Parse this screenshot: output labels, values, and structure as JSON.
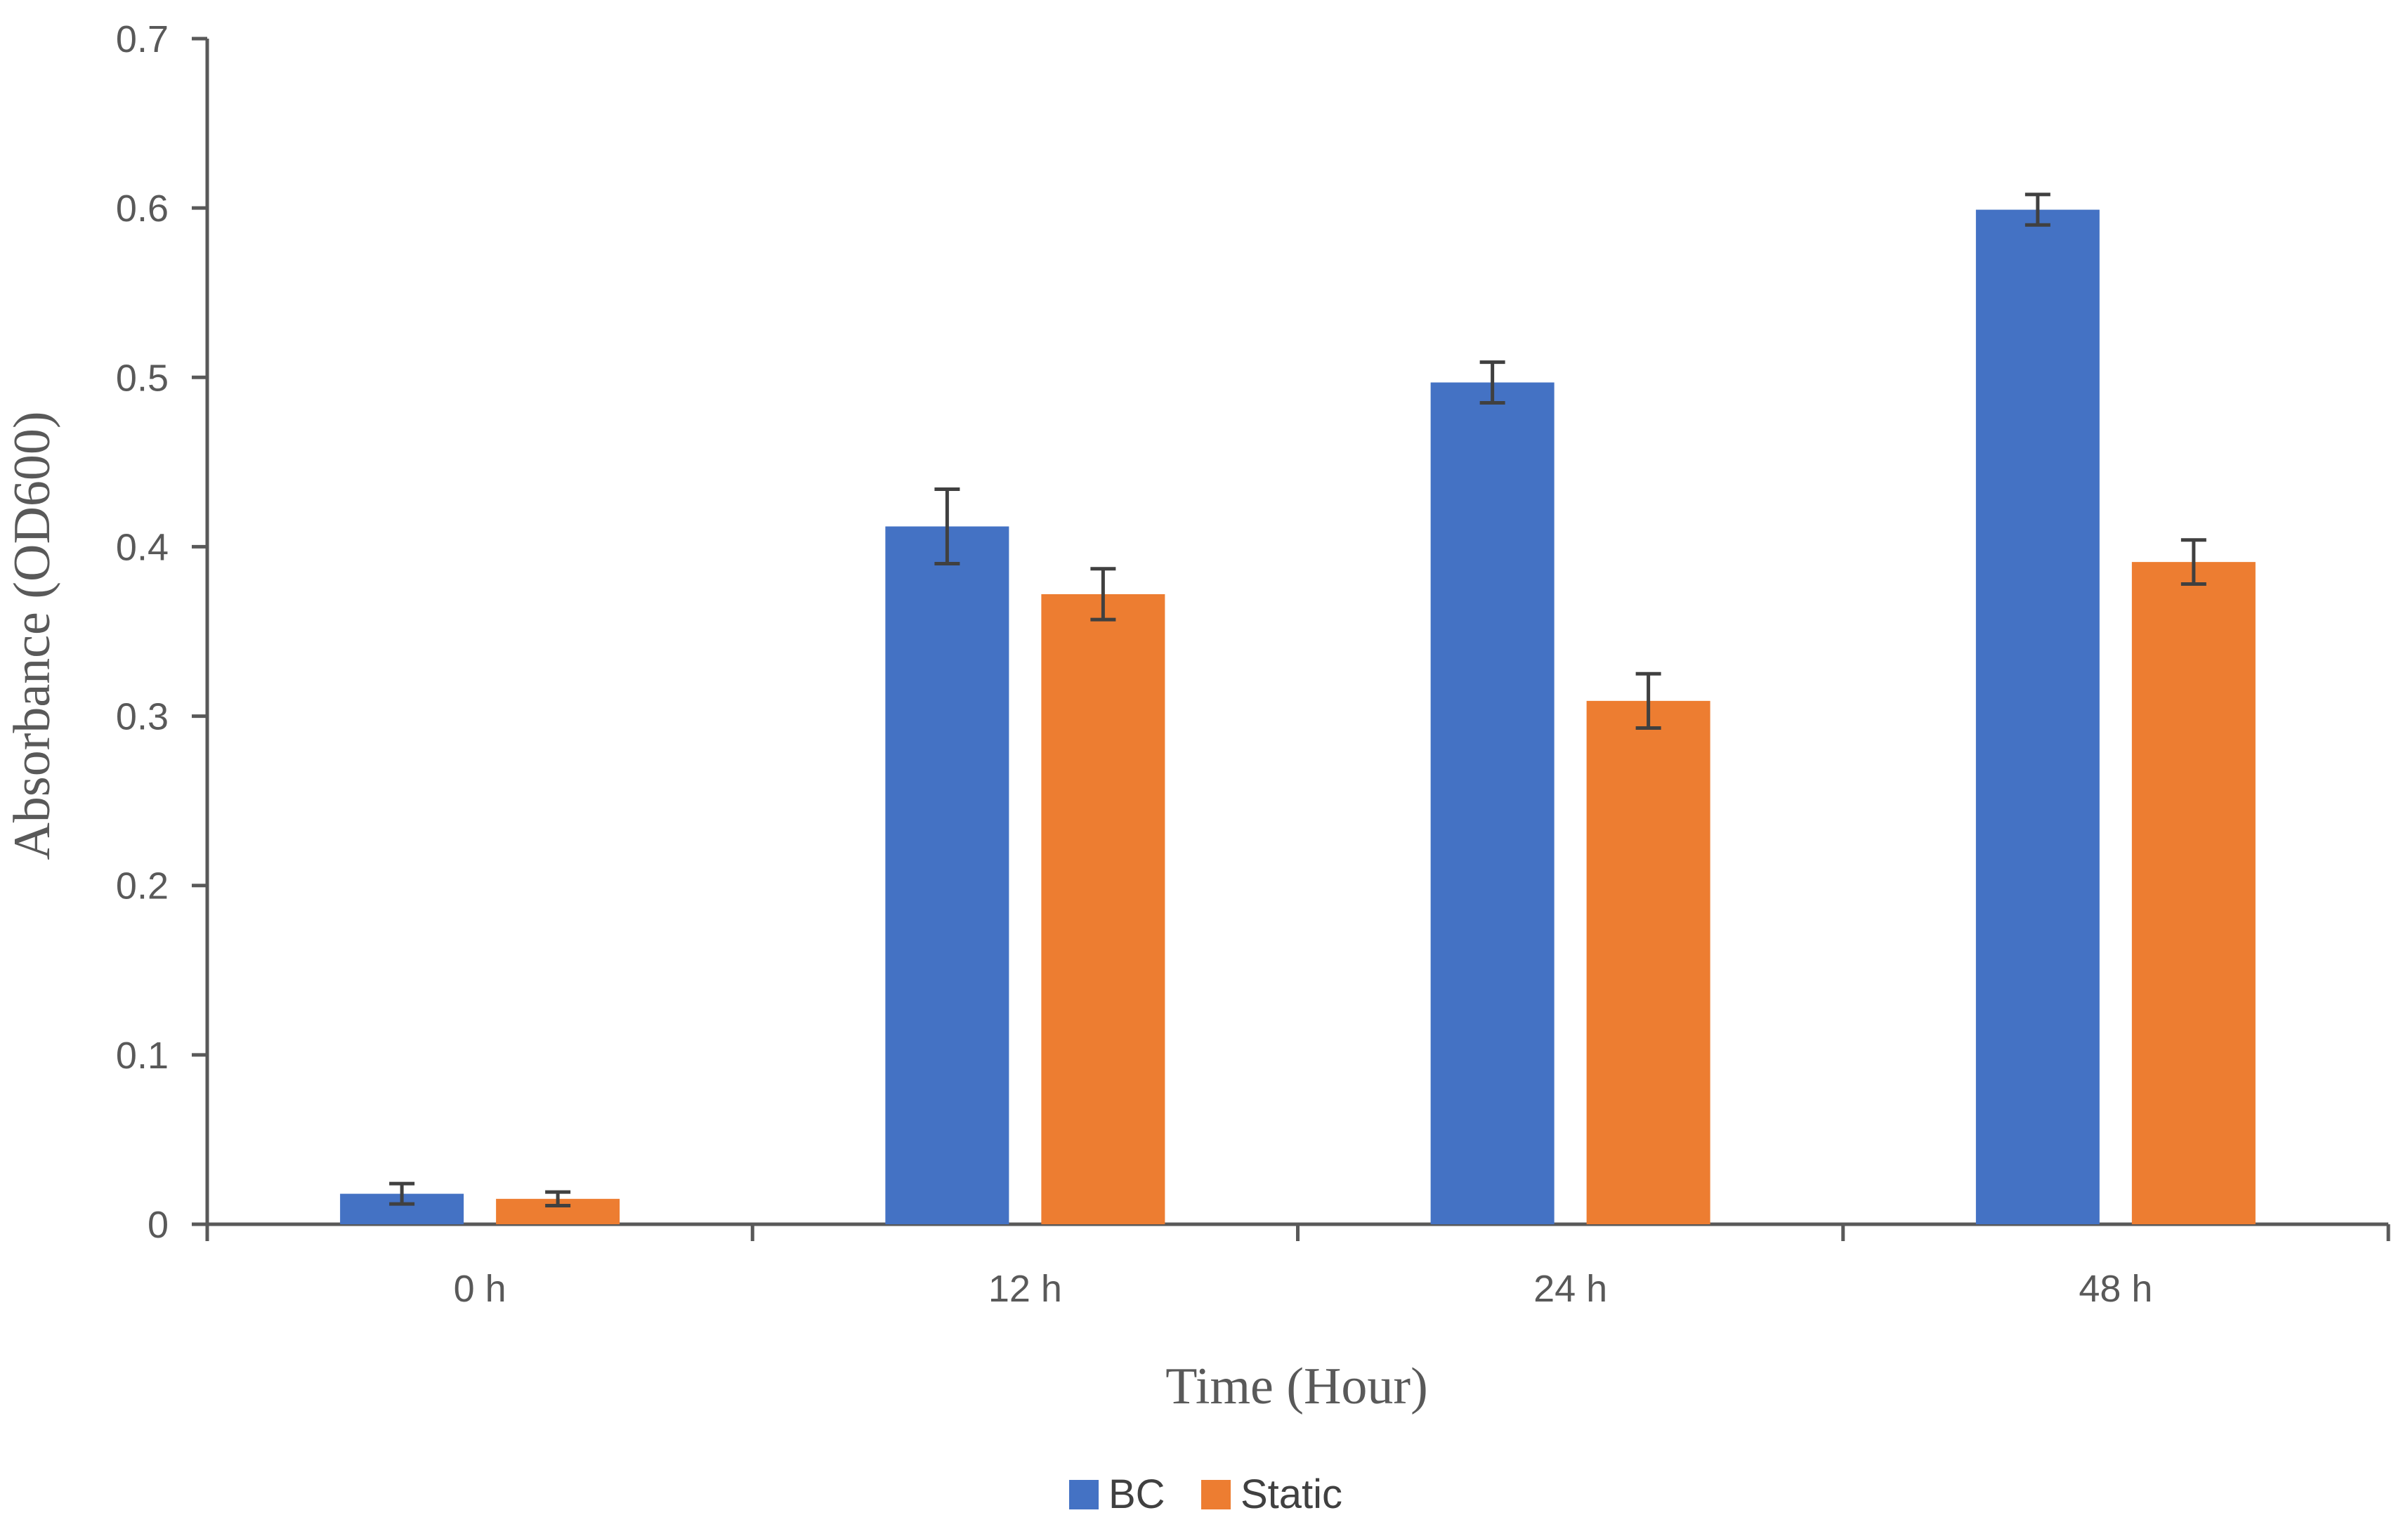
{
  "chart_data": {
    "type": "bar",
    "title": "",
    "xlabel": "Time (Hour)",
    "ylabel": "Absorbance (OD600)",
    "categories": [
      "0 h",
      "12 h",
      "24 h",
      "48 h"
    ],
    "ylim": [
      0,
      0.7
    ],
    "yticks": [
      0,
      0.1,
      0.2,
      0.3,
      0.4,
      0.5,
      0.6,
      0.7
    ],
    "ytick_labels": [
      "0",
      "0.1",
      "0.2",
      "0.3",
      "0.4",
      "0.5",
      "0.6",
      "0.7"
    ],
    "grid": false,
    "legend_position": "bottom",
    "series": [
      {
        "name": "BC",
        "color": "#4472C4",
        "values": [
          0.018,
          0.412,
          0.497,
          0.599
        ],
        "errors": [
          0.006,
          0.022,
          0.012,
          0.009
        ]
      },
      {
        "name": "Static",
        "color": "#ED7D31",
        "values": [
          0.015,
          0.372,
          0.309,
          0.391
        ],
        "errors": [
          0.004,
          0.015,
          0.016,
          0.013
        ]
      }
    ],
    "axis_color": "#595959",
    "errorbar_color": "#404040"
  }
}
